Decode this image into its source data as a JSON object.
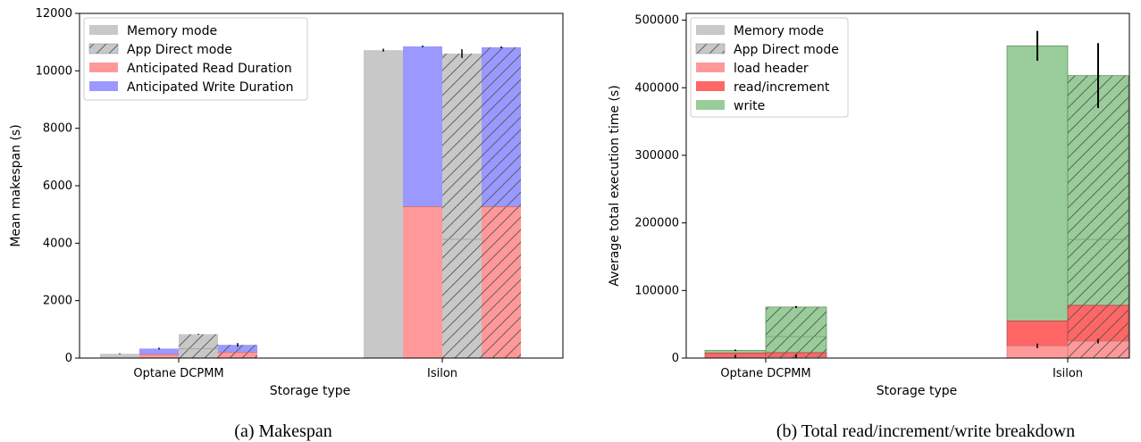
{
  "chart_data": [
    {
      "type": "bar",
      "caption": "(a) Makespan",
      "xlabel": "Storage type",
      "ylabel": "Mean makespan (s)",
      "categories": [
        "Optane DCPMM",
        "Isilon"
      ],
      "ylim": [
        0,
        12000
      ],
      "yticks": [
        0,
        2000,
        4000,
        6000,
        8000,
        10000,
        12000
      ],
      "legend_position": "top-left",
      "legend": [
        "Memory mode",
        "App Direct mode",
        "Anticipated Read Duration",
        "Anticipated Write Duration"
      ],
      "bars": [
        {
          "category": "Optane DCPMM",
          "mode": "Memory mode",
          "kind": "makespan",
          "value": 150,
          "err": 15
        },
        {
          "category": "Optane DCPMM",
          "mode": "Memory mode",
          "kind": "anticipated",
          "read": 120,
          "write": 330,
          "err": 30
        },
        {
          "category": "Optane DCPMM",
          "mode": "App Direct mode",
          "kind": "makespan",
          "value": 830,
          "err": 15
        },
        {
          "category": "Optane DCPMM",
          "mode": "App Direct mode",
          "kind": "anticipated",
          "read": 200,
          "write": 460,
          "err": 60
        },
        {
          "category": "Isilon",
          "mode": "Memory mode",
          "kind": "makespan",
          "value": 10720,
          "err": 50
        },
        {
          "category": "Isilon",
          "mode": "Memory mode",
          "kind": "anticipated",
          "read": 5270,
          "write": 10850,
          "err": 30
        },
        {
          "category": "Isilon",
          "mode": "App Direct mode",
          "kind": "makespan",
          "value": 10600,
          "err": 150
        },
        {
          "category": "Isilon",
          "mode": "App Direct mode",
          "kind": "anticipated",
          "read": 5270,
          "write": 10820,
          "err": 30
        }
      ]
    },
    {
      "type": "bar",
      "caption": "(b) Total read/increment/write breakdown",
      "xlabel": "Storage type",
      "ylabel": "Average total execution time (s)",
      "categories": [
        "Optane DCPMM",
        "Isilon"
      ],
      "ylim": [
        0,
        510000
      ],
      "yticks": [
        0,
        100000,
        200000,
        300000,
        400000,
        500000
      ],
      "legend_position": "top-left",
      "legend": [
        "Memory mode",
        "App Direct mode",
        "load header",
        "read/increment",
        "write"
      ],
      "bars": [
        {
          "category": "Optane DCPMM",
          "mode": "Memory mode",
          "load_header": 1500,
          "read_increment": 7500,
          "write": 11500,
          "err": 1000
        },
        {
          "category": "Optane DCPMM",
          "mode": "App Direct mode",
          "load_header": 2000,
          "read_increment": 8000,
          "write": 75500,
          "err": 1500
        },
        {
          "category": "Isilon",
          "mode": "Memory mode",
          "load_header": 18000,
          "read_increment": 55000,
          "write": 462000,
          "err": 22000
        },
        {
          "category": "Isilon",
          "mode": "App Direct mode",
          "load_header": 25000,
          "read_increment": 78000,
          "write": 418000,
          "err": 48000
        }
      ]
    }
  ],
  "colors": {
    "memory": "#c8c8c8",
    "appdirect": "#c8c8c8",
    "read": "#ff9999",
    "write_anticipated": "#9999ff",
    "load_header": "#ff9999",
    "read_increment": "#ff6666",
    "write": "#99cc99"
  }
}
